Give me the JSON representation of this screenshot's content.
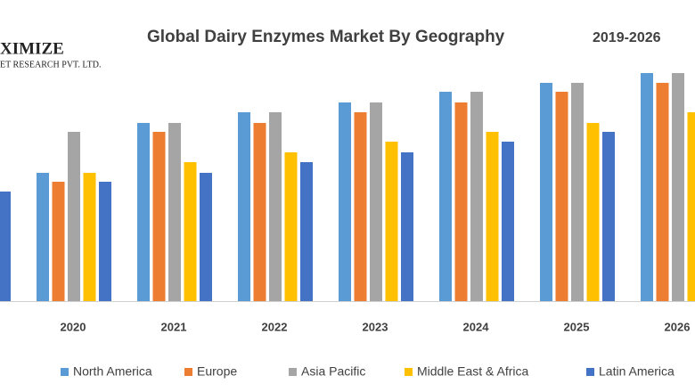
{
  "logo": {
    "name": "XIMIZE",
    "subtitle": "ET RESEARCH PVT. LTD."
  },
  "chart_data": {
    "type": "bar",
    "title": "Global Dairy Enzymes Market By Geography",
    "subtitle": "2019-2026",
    "categories": [
      null,
      "2020",
      "2021",
      "2022",
      "2023",
      "2024",
      "2025",
      "2026"
    ],
    "series": [
      {
        "name": "North America",
        "color": "#5b9bd5",
        "values": [
          null,
          144,
          200,
          212,
          223,
          235,
          245,
          256
        ]
      },
      {
        "name": "Europe",
        "color": "#ed7d31",
        "values": [
          null,
          134,
          190,
          200,
          212,
          223,
          235,
          245
        ]
      },
      {
        "name": "Asia Pacific",
        "color": "#a5a5a5",
        "values": [
          null,
          190,
          200,
          212,
          223,
          235,
          245,
          256
        ]
      },
      {
        "name": "Middle East & Africa",
        "color": "#ffc000",
        "values": [
          null,
          144,
          156,
          167,
          179,
          190,
          200,
          212
        ]
      },
      {
        "name": "Latin America",
        "color": "#4472c4",
        "values": [
          123,
          134,
          144,
          156,
          167,
          179,
          190,
          null
        ]
      }
    ]
  }
}
